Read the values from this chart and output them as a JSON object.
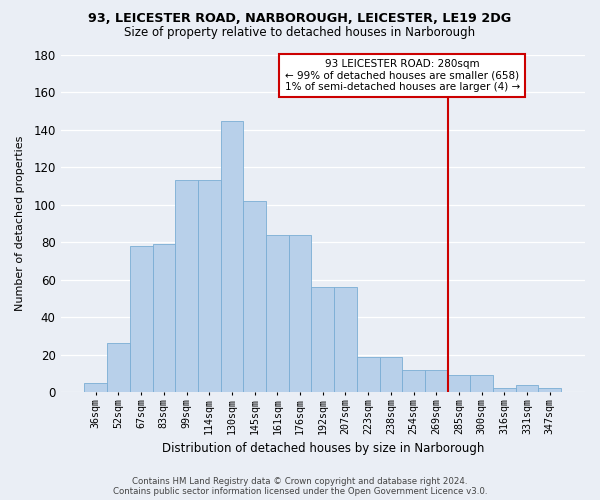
{
  "title": "93, LEICESTER ROAD, NARBOROUGH, LEICESTER, LE19 2DG",
  "subtitle": "Size of property relative to detached houses in Narborough",
  "xlabel": "Distribution of detached houses by size in Narborough",
  "ylabel": "Number of detached properties",
  "bar_labels": [
    "36sqm",
    "52sqm",
    "67sqm",
    "83sqm",
    "99sqm",
    "114sqm",
    "130sqm",
    "145sqm",
    "161sqm",
    "176sqm",
    "192sqm",
    "207sqm",
    "223sqm",
    "238sqm",
    "254sqm",
    "269sqm",
    "285sqm",
    "300sqm",
    "316sqm",
    "331sqm",
    "347sqm"
  ],
  "bar_heights": [
    5,
    26,
    78,
    79,
    113,
    113,
    145,
    102,
    84,
    84,
    56,
    56,
    19,
    19,
    12,
    12,
    9,
    9,
    2,
    4,
    2
  ],
  "bar_color": "#b8d0ea",
  "bar_edge_color": "#7aadd4",
  "vline_index": 16,
  "vline_color": "#cc0000",
  "annotation_text": "93 LEICESTER ROAD: 280sqm\n← 99% of detached houses are smaller (658)\n1% of semi-detached houses are larger (4) →",
  "annotation_box_color": "#cc0000",
  "ylim": [
    0,
    180
  ],
  "yticks": [
    0,
    20,
    40,
    60,
    80,
    100,
    120,
    140,
    160,
    180
  ],
  "bg_color": "#eaeef5",
  "grid_color": "#ffffff",
  "footer": "Contains HM Land Registry data © Crown copyright and database right 2024.\nContains public sector information licensed under the Open Government Licence v3.0."
}
